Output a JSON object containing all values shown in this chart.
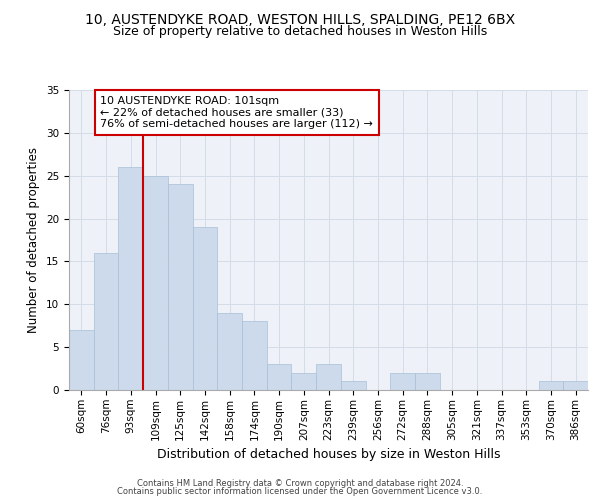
{
  "title1": "10, AUSTENDYKE ROAD, WESTON HILLS, SPALDING, PE12 6BX",
  "title2": "Size of property relative to detached houses in Weston Hills",
  "xlabel": "Distribution of detached houses by size in Weston Hills",
  "ylabel": "Number of detached properties",
  "bins": [
    "60sqm",
    "76sqm",
    "93sqm",
    "109sqm",
    "125sqm",
    "142sqm",
    "158sqm",
    "174sqm",
    "190sqm",
    "207sqm",
    "223sqm",
    "239sqm",
    "256sqm",
    "272sqm",
    "288sqm",
    "305sqm",
    "321sqm",
    "337sqm",
    "353sqm",
    "370sqm",
    "386sqm"
  ],
  "values": [
    7,
    16,
    26,
    25,
    24,
    19,
    9,
    8,
    3,
    2,
    3,
    1,
    0,
    2,
    2,
    0,
    0,
    0,
    0,
    1,
    1
  ],
  "bar_color": "#ccdaeb",
  "bar_edge_color": "#a8bfd6",
  "red_line_color": "#cc0000",
  "annotation_text": "10 AUSTENDYKE ROAD: 101sqm\n← 22% of detached houses are smaller (33)\n76% of semi-detached houses are larger (112) →",
  "annotation_box_color": "#ffffff",
  "annotation_box_edge": "#cc0000",
  "grid_color": "#d4dce8",
  "background_color": "#eef2f8",
  "ylim": [
    0,
    35
  ],
  "yticks": [
    0,
    5,
    10,
    15,
    20,
    25,
    30,
    35
  ],
  "footer1": "Contains HM Land Registry data © Crown copyright and database right 2024.",
  "footer2": "Contains public sector information licensed under the Open Government Licence v3.0.",
  "title1_fontsize": 10,
  "title2_fontsize": 9,
  "tick_fontsize": 7.5,
  "ylabel_fontsize": 8.5,
  "xlabel_fontsize": 9,
  "annotation_fontsize": 8,
  "footer_fontsize": 6
}
